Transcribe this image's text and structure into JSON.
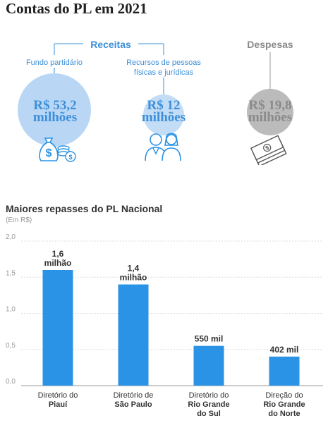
{
  "header": {
    "title": "Contas do PL em 2021"
  },
  "receitas": {
    "heading": "Receitas",
    "fundo": {
      "label": "Fundo partidário",
      "amount_line1": "R$ 53,2",
      "amount_line2": "milhões",
      "icon": "money-bag-icon"
    },
    "recursos": {
      "label_line1": "Recursos de pessoas",
      "label_line2": "físicas e jurídicas",
      "amount_line1": "R$ 12",
      "amount_line2": "milhões",
      "icon": "people-icon"
    }
  },
  "despesas": {
    "heading": "Despesas",
    "amount_line1": "R$ 19,8",
    "amount_line2": "milhões",
    "icon": "cash-stack-icon"
  },
  "colors": {
    "accent_blue": "#3d8fd9",
    "circle_big": "#b9d7f5",
    "circle_small": "#c4ddf6",
    "circle_gray": "#bbbbbb",
    "bar": "#2b93e5",
    "dark_amount": "#8a8a8a"
  },
  "chart_data": {
    "type": "bar",
    "title": "Maiores repasses do PL Nacional",
    "subtitle": "(Em R$)",
    "categories": [
      [
        "Diretório do",
        "Piauí"
      ],
      [
        "Diretório de",
        "São Paulo"
      ],
      [
        "Diretório do",
        "Rio Grande",
        "do Sul"
      ],
      [
        "Direção do",
        "Rio Grande",
        "do Norte"
      ]
    ],
    "values": [
      1.6,
      1.4,
      0.55,
      0.402
    ],
    "data_labels": [
      [
        "1,6",
        "milhão"
      ],
      [
        "1,4",
        "milhão"
      ],
      [
        "550 mil"
      ],
      [
        "402 mil"
      ]
    ],
    "ylim": [
      0,
      2.0
    ],
    "yticks": [
      0,
      0.5,
      1.0,
      1.5,
      2.0
    ],
    "ytick_labels": [
      "0,0",
      "0,5",
      "1,0",
      "1,5",
      "2,0"
    ],
    "grid": true
  }
}
